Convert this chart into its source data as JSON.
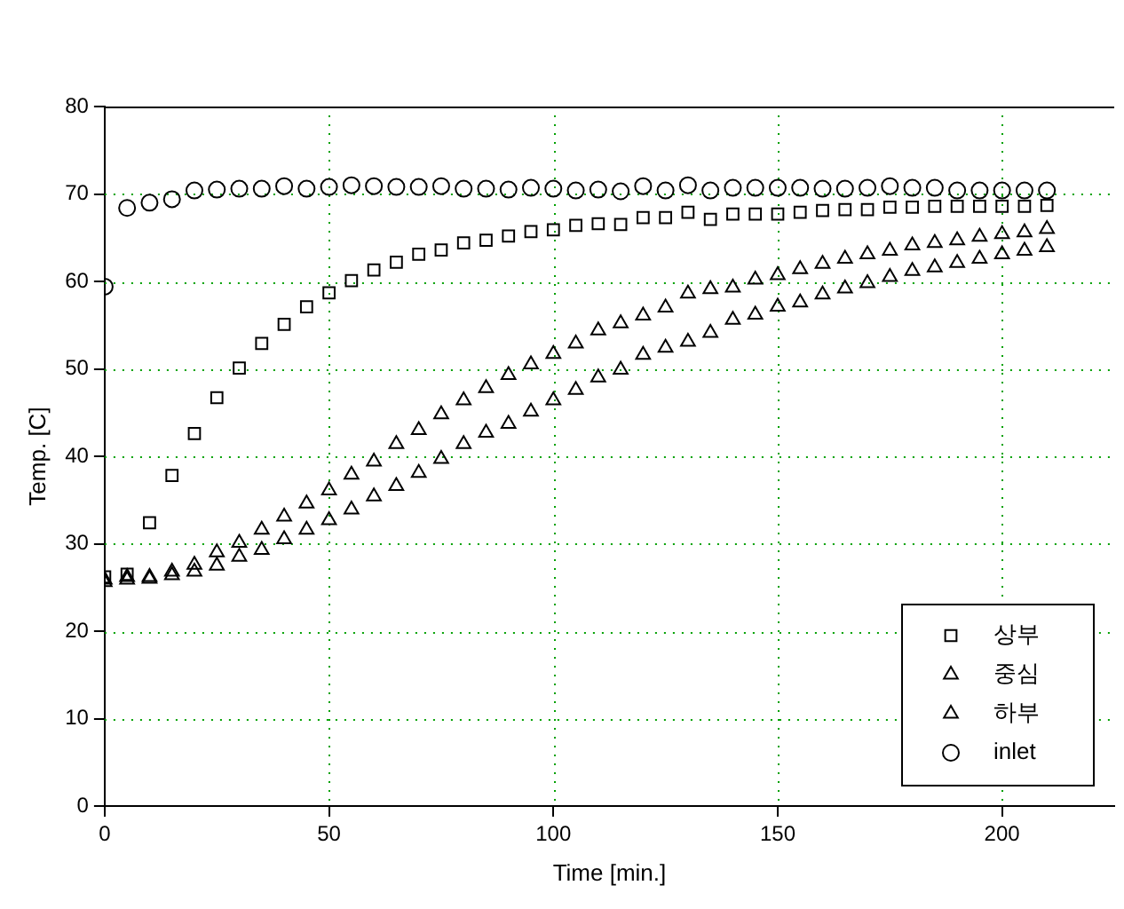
{
  "chart_data": {
    "type": "scatter",
    "xlabel": "Time [min.]",
    "ylabel": "Temp. [C]",
    "x": [
      0,
      5,
      10,
      15,
      20,
      25,
      30,
      35,
      40,
      45,
      50,
      55,
      60,
      65,
      70,
      75,
      80,
      85,
      90,
      95,
      100,
      105,
      110,
      115,
      120,
      125,
      130,
      135,
      140,
      145,
      150,
      155,
      160,
      165,
      170,
      175,
      180,
      185,
      190,
      195,
      200,
      205,
      210
    ],
    "series": [
      {
        "name": "상부",
        "color": "#000000",
        "marker": "square",
        "values": [
          26.2,
          26.5,
          32.4,
          37.8,
          42.6,
          46.7,
          50.1,
          52.9,
          55.1,
          57.1,
          58.7,
          60.1,
          61.3,
          62.2,
          63.1,
          63.6,
          64.4,
          64.7,
          65.2,
          65.7,
          65.9,
          66.4,
          66.6,
          66.5,
          67.3,
          67.3,
          67.9,
          67.1,
          67.7,
          67.7,
          67.7,
          67.9,
          68.1,
          68.2,
          68.2,
          68.5,
          68.5,
          68.6,
          68.6,
          68.6,
          68.6,
          68.6,
          68.7
        ]
      },
      {
        "name": "중심",
        "color": "#000000",
        "marker": "triangle",
        "values": [
          25.9,
          26.2,
          26.2,
          26.8,
          27.6,
          29,
          30.1,
          31.6,
          33.1,
          34.6,
          36.1,
          37.9,
          39.4,
          41.4,
          43,
          44.8,
          46.4,
          47.8,
          49.3,
          50.5,
          51.7,
          52.9,
          54.4,
          55.2,
          56.1,
          57,
          58.6,
          59.1,
          59.3,
          60.2,
          60.7,
          61.4,
          62,
          62.6,
          63.1,
          63.5,
          64.1,
          64.4,
          64.7,
          65.1,
          65.4,
          65.6,
          66
        ]
      },
      {
        "name": "하부",
        "color": "#000000",
        "marker": "triangle",
        "values": [
          25.6,
          25.9,
          26.0,
          26.4,
          26.8,
          27.5,
          28.5,
          29.3,
          30.5,
          31.6,
          32.7,
          33.9,
          35.4,
          36.6,
          38.1,
          39.7,
          41.4,
          42.7,
          43.7,
          45.1,
          46.4,
          47.6,
          49,
          49.9,
          51.6,
          52.4,
          53.1,
          54.1,
          55.6,
          56.2,
          57.1,
          57.6,
          58.5,
          59.2,
          59.8,
          60.5,
          61.2,
          61.6,
          62.1,
          62.6,
          63.1,
          63.5,
          63.9
        ]
      },
      {
        "name": "inlet",
        "color": "#000000",
        "marker": "circle",
        "values": [
          59.4,
          68.4,
          69,
          69.4,
          70.4,
          70.5,
          70.6,
          70.6,
          70.9,
          70.6,
          70.8,
          71,
          70.9,
          70.8,
          70.8,
          70.9,
          70.6,
          70.6,
          70.5,
          70.7,
          70.6,
          70.4,
          70.5,
          70.3,
          70.9,
          70.4,
          71,
          70.4,
          70.7,
          70.7,
          70.7,
          70.7,
          70.6,
          70.6,
          70.7,
          70.9,
          70.7,
          70.7,
          70.4,
          70.4,
          70.4,
          70.4,
          70.4
        ]
      }
    ],
    "xlim": [
      0,
      225
    ],
    "xticks": [
      0,
      50,
      100,
      150,
      200
    ],
    "ylim": [
      0,
      80
    ],
    "yticks": [
      0,
      10,
      20,
      30,
      40,
      50,
      60,
      70,
      80
    ],
    "grid": true,
    "legend": "bottom right"
  }
}
